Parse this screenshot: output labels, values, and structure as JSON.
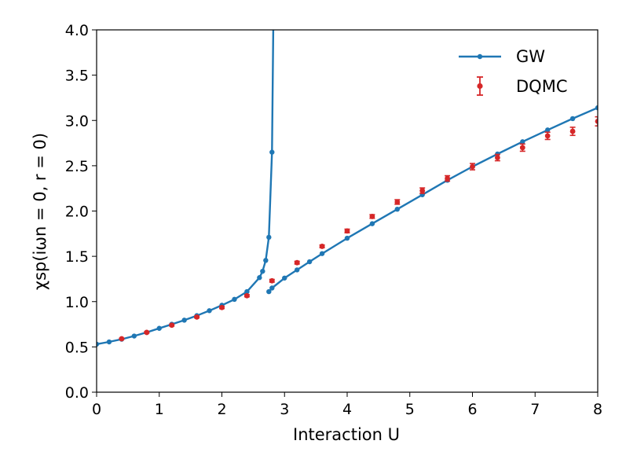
{
  "chart_data": {
    "type": "line",
    "xlabel": "Interaction U",
    "ylabel": "χsp(iωn = 0, r = 0)",
    "xlim": [
      0,
      8
    ],
    "ylim": [
      0.0,
      4.0
    ],
    "x_ticks": [
      "0",
      "1",
      "2",
      "3",
      "4",
      "5",
      "6",
      "7",
      "8"
    ],
    "y_ticks": [
      "0.0",
      "0.5",
      "1.0",
      "1.5",
      "2.0",
      "2.5",
      "3.0",
      "3.5",
      "4.0"
    ],
    "grid": false,
    "legend_position": "top-right",
    "series": [
      {
        "name": "GW",
        "style": "line-with-markers",
        "color": "#1f77b4",
        "segments": [
          {
            "x": [
              0.0,
              0.2,
              0.4,
              0.6,
              0.8,
              1.0,
              1.2,
              1.4,
              1.6,
              1.8,
              2.0,
              2.2,
              2.4,
              2.6,
              2.65,
              2.7,
              2.75,
              2.8,
              2.82
            ],
            "y": [
              0.53,
              0.555,
              0.585,
              0.62,
              0.66,
              0.705,
              0.75,
              0.795,
              0.845,
              0.9,
              0.96,
              1.025,
              1.11,
              1.265,
              1.335,
              1.455,
              1.71,
              2.65,
              4.0
            ]
          },
          {
            "x": [
              2.75,
              2.8,
              3.0,
              3.2,
              3.4,
              3.6,
              4.0,
              4.4,
              4.8,
              5.2,
              5.6,
              6.0,
              6.4,
              6.8,
              7.2,
              7.6,
              8.0
            ],
            "y": [
              1.11,
              1.15,
              1.26,
              1.35,
              1.44,
              1.53,
              1.7,
              1.86,
              2.02,
              2.18,
              2.34,
              2.49,
              2.63,
              2.765,
              2.895,
              3.02,
              3.14
            ]
          }
        ]
      },
      {
        "name": "DQMC",
        "style": "markers-with-errorbars",
        "color": "#d62728",
        "x": [
          0.4,
          0.8,
          1.2,
          1.6,
          2.0,
          2.4,
          2.8,
          3.2,
          3.6,
          4.0,
          4.4,
          4.8,
          5.2,
          5.6,
          6.0,
          6.4,
          6.8,
          7.2,
          7.6,
          8.0
        ],
        "y": [
          0.59,
          0.66,
          0.74,
          0.83,
          0.935,
          1.065,
          1.23,
          1.43,
          1.61,
          1.78,
          1.94,
          2.1,
          2.225,
          2.36,
          2.49,
          2.59,
          2.7,
          2.83,
          2.88,
          2.99
        ],
        "err": [
          0.006,
          0.008,
          0.01,
          0.01,
          0.012,
          0.012,
          0.015,
          0.015,
          0.015,
          0.02,
          0.02,
          0.025,
          0.03,
          0.03,
          0.035,
          0.035,
          0.04,
          0.04,
          0.045,
          0.05
        ]
      }
    ]
  }
}
